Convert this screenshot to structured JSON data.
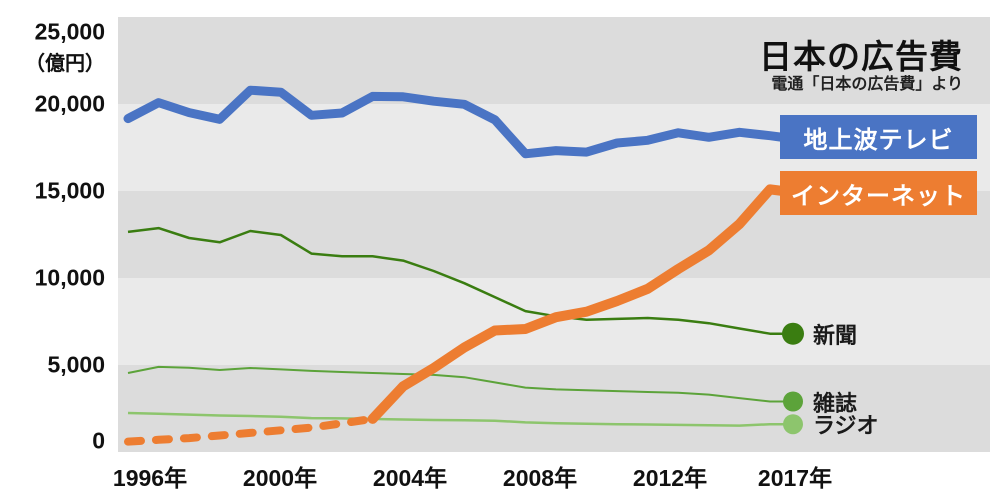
{
  "title": "日本の広告費",
  "subtitle": "電通「日本の広告費」より",
  "y_axis": {
    "unit": "（億円）",
    "ticks": [
      "25,000",
      "20,000",
      "15,000",
      "10,000",
      "5,000",
      "0"
    ],
    "tick_values": [
      25000,
      20000,
      15000,
      10000,
      5000,
      0
    ]
  },
  "x_axis": {
    "ticks": [
      "1996年",
      "2000年",
      "2004年",
      "2008年",
      "2012年",
      "2017年"
    ]
  },
  "series_labels": {
    "tv": "地上波テレビ",
    "internet": "インターネット",
    "newspaper": "新聞",
    "magazine": "雑誌",
    "radio": "ラジオ"
  },
  "colors": {
    "tv": "#4a74c4",
    "internet": "#ed7d31",
    "newspaper": "#3a7d11",
    "magazine": "#5ca33a",
    "radio": "#8dc56d",
    "band_dark": "#dcdcdc",
    "band_light": "#eaeaea",
    "text": "#111111"
  },
  "chart_data": {
    "type": "line",
    "title": "日本の広告費",
    "source": "電通「日本の広告費」より",
    "ylabel": "（億円）",
    "ylim": [
      0,
      25000
    ],
    "grid": "alternating horizontal bands every 5000",
    "legend_position": "right-end labels",
    "x": [
      1996,
      1997,
      1998,
      1999,
      2000,
      2001,
      2002,
      2003,
      2004,
      2005,
      2006,
      2007,
      2008,
      2009,
      2010,
      2011,
      2012,
      2013,
      2014,
      2015,
      2016,
      2017
    ],
    "x_tick_labels": [
      "1996年",
      "2000年",
      "2004年",
      "2008年",
      "2012年",
      "2017年"
    ],
    "series": [
      {
        "key": "tv",
        "name": "地上波テレビ",
        "color": "#4a74c4",
        "style": "solid-thick",
        "values": [
          19162,
          20079,
          19505,
          19121,
          20793,
          20681,
          19351,
          19480,
          20436,
          20411,
          20161,
          19981,
          19092,
          17139,
          17321,
          17237,
          17757,
          17913,
          18347,
          18088,
          18374,
          18178
        ]
      },
      {
        "key": "internet",
        "name": "インターネット",
        "color": "#ed7d31",
        "style": "dashed before 2004, solid-thick after",
        "dashed_until_year": 2004,
        "values": [
          600,
          700,
          800,
          950,
          1100,
          1250,
          1400,
          1650,
          1900,
          3777,
          4826,
          6003,
          6983,
          7069,
          7747,
          8062,
          8680,
          9381,
          10519,
          11594,
          13100,
          15094
        ]
      },
      {
        "key": "newspaper",
        "name": "新聞",
        "color": "#3a7d11",
        "style": "solid-thin, end dot",
        "values": [
          12650,
          12870,
          12300,
          12050,
          12700,
          12470,
          11400,
          11250,
          11250,
          11000,
          10400,
          9700,
          8900,
          8100,
          7800,
          7600,
          7650,
          7700,
          7600,
          7400,
          7100,
          6800
        ]
      },
      {
        "key": "magazine",
        "name": "雑誌",
        "color": "#5ca33a",
        "style": "solid-thin, end dot",
        "values": [
          4540,
          4890,
          4840,
          4710,
          4830,
          4750,
          4660,
          4600,
          4540,
          4480,
          4430,
          4300,
          4000,
          3700,
          3600,
          3550,
          3500,
          3450,
          3400,
          3300,
          3100,
          2900
        ]
      },
      {
        "key": "radio",
        "name": "ラジオ",
        "color": "#8dc56d",
        "style": "solid-thin, end dot",
        "values": [
          2240,
          2200,
          2150,
          2100,
          2070,
          2030,
          1950,
          1930,
          1900,
          1870,
          1840,
          1820,
          1800,
          1700,
          1650,
          1620,
          1600,
          1580,
          1560,
          1540,
          1520,
          1600
        ]
      }
    ]
  }
}
